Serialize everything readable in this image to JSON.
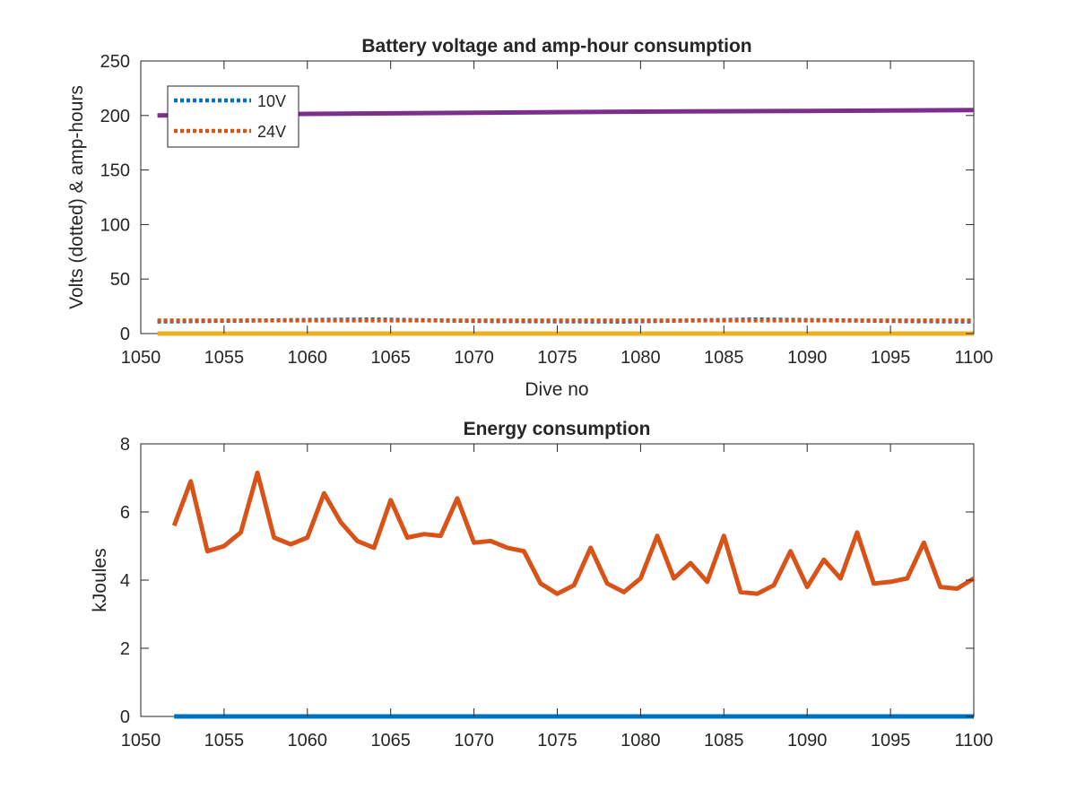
{
  "chart_data": [
    {
      "type": "line",
      "title": "Battery voltage and amp-hour consumption",
      "xlabel": "Dive no",
      "ylabel": "Volts (dotted) & amp-hours",
      "xlim": [
        1050,
        1100
      ],
      "ylim": [
        0,
        250
      ],
      "xticks": [
        1050,
        1055,
        1060,
        1065,
        1070,
        1075,
        1080,
        1085,
        1090,
        1095,
        1100
      ],
      "yticks": [
        0,
        50,
        100,
        150,
        200,
        250
      ],
      "grid": false,
      "legend": {
        "position": "top-left",
        "entries": [
          "10V",
          "24V"
        ]
      },
      "series": [
        {
          "name": "10V",
          "style": "dotted",
          "color": "#0072BD",
          "x": [
            1051,
            1060,
            1064,
            1070,
            1079,
            1087,
            1095,
            1100
          ],
          "y": [
            11,
            12.5,
            13,
            11.5,
            11,
            13,
            11.5,
            11
          ]
        },
        {
          "name": "24V",
          "style": "dotted",
          "color": "#D95319",
          "x": [
            1051,
            1100
          ],
          "y": [
            12,
            12
          ]
        },
        {
          "style": "solid",
          "color": "#7E2F8E",
          "x": [
            1051,
            1060,
            1070,
            1080,
            1090,
            1100
          ],
          "y": [
            200,
            201.5,
            202.5,
            203.5,
            204.2,
            205
          ]
        },
        {
          "style": "solid",
          "color": "#EDB120",
          "x": [
            1051,
            1100
          ],
          "y": [
            0,
            0
          ]
        }
      ]
    },
    {
      "type": "line",
      "title": "Energy consumption",
      "xlabel": "",
      "ylabel": "kJoules",
      "xlim": [
        1050,
        1100
      ],
      "ylim": [
        0,
        8
      ],
      "xticks": [
        1050,
        1055,
        1060,
        1065,
        1070,
        1075,
        1080,
        1085,
        1090,
        1095,
        1100
      ],
      "yticks": [
        0,
        2,
        4,
        6,
        8
      ],
      "grid": false,
      "series": [
        {
          "style": "solid",
          "color": "#D95319",
          "x": [
            1052,
            1053,
            1054,
            1055,
            1056,
            1057,
            1058,
            1059,
            1060,
            1061,
            1062,
            1063,
            1064,
            1065,
            1066,
            1067,
            1068,
            1069,
            1070,
            1071,
            1072,
            1073,
            1074,
            1075,
            1076,
            1077,
            1078,
            1079,
            1080,
            1081,
            1082,
            1083,
            1084,
            1085,
            1086,
            1087,
            1088,
            1089,
            1090,
            1091,
            1092,
            1093,
            1094,
            1095,
            1096,
            1097,
            1098,
            1099,
            1100
          ],
          "y": [
            5.6,
            6.9,
            4.85,
            5.0,
            5.4,
            7.15,
            5.25,
            5.05,
            5.25,
            6.55,
            5.7,
            5.15,
            4.95,
            6.35,
            5.25,
            5.35,
            5.3,
            6.4,
            5.1,
            5.15,
            4.95,
            4.85,
            3.9,
            3.6,
            3.85,
            4.95,
            3.9,
            3.65,
            4.05,
            5.3,
            4.05,
            4.5,
            3.95,
            5.3,
            3.65,
            3.6,
            3.85,
            4.85,
            3.8,
            4.6,
            4.05,
            5.4,
            3.9,
            3.95,
            4.05,
            5.1,
            3.8,
            3.75,
            4.05
          ]
        },
        {
          "style": "solid",
          "color": "#0072BD",
          "x": [
            1052,
            1100
          ],
          "y": [
            0,
            0
          ]
        }
      ]
    }
  ]
}
